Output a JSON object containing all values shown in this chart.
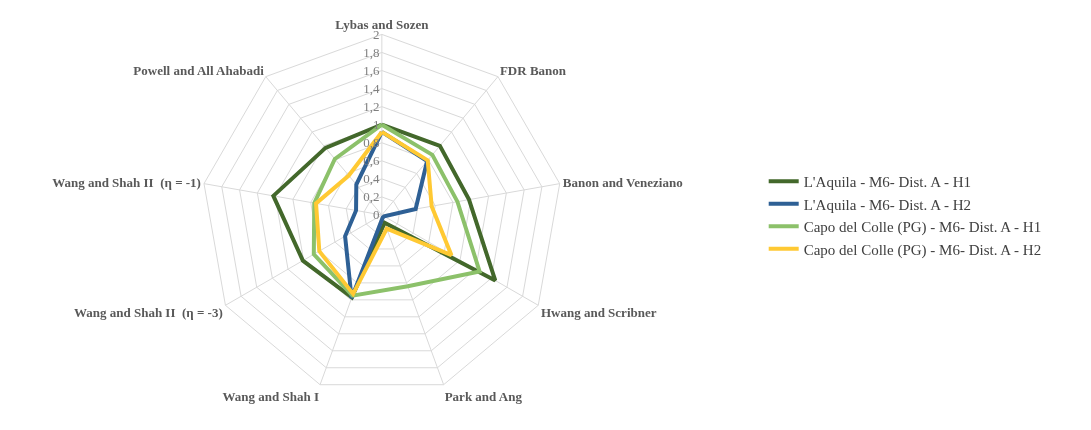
{
  "chart_data": {
    "type": "radar",
    "categories": [
      "Lybas and Sozen",
      "FDR Banon",
      "Banon and Veneziano",
      "Hwang and Scribner",
      "Park and Ang",
      "Wang and Shah I",
      "Wang and Shah II  (η = -3)",
      "Wang and Shah II  (η = -1)",
      "Powell and All Ahabadi"
    ],
    "ylim": [
      0,
      2
    ],
    "yticks": [
      {
        "value": 0,
        "label": "0"
      },
      {
        "value": 0.2,
        "label": "0,2"
      },
      {
        "value": 0.4,
        "label": "0,4"
      },
      {
        "value": 0.6,
        "label": "0,6"
      },
      {
        "value": 0.8,
        "label": "0,8"
      },
      {
        "value": 1,
        "label": "1"
      },
      {
        "value": 1.2,
        "label": "1,2"
      },
      {
        "value": 1.4,
        "label": "1,4"
      },
      {
        "value": 1.6,
        "label": "1,6"
      },
      {
        "value": 1.8,
        "label": "1,8"
      },
      {
        "value": 2,
        "label": "2"
      }
    ],
    "grid": true,
    "legend": "right",
    "marker": "none",
    "line_style": "solid",
    "series": [
      {
        "name": "L'Aquila - M6- Dist. A - H1",
        "color": "#43682b",
        "values": [
          1.0,
          1.0,
          0.98,
          1.45,
          0.09,
          0.97,
          1.01,
          1.22,
          0.97
        ]
      },
      {
        "name": "L'Aquila - M6- Dist. A - H2",
        "color": "#2e6095",
        "values": [
          0.92,
          0.78,
          0.38,
          0.03,
          0.03,
          0.98,
          0.47,
          0.29,
          0.44
        ]
      },
      {
        "name": "Capo del Colle (PG) - M6- Dist. A - H1",
        "color": "#8cc16a",
        "values": [
          1.0,
          0.87,
          0.85,
          1.25,
          0.84,
          0.95,
          0.87,
          0.76,
          0.81
        ]
      },
      {
        "name": "Capo del Colle (PG) - M6- Dist. A - H2",
        "color": "#ffc933",
        "values": [
          0.92,
          0.79,
          0.56,
          0.89,
          0.16,
          0.93,
          0.8,
          0.74,
          0.57
        ]
      }
    ]
  }
}
